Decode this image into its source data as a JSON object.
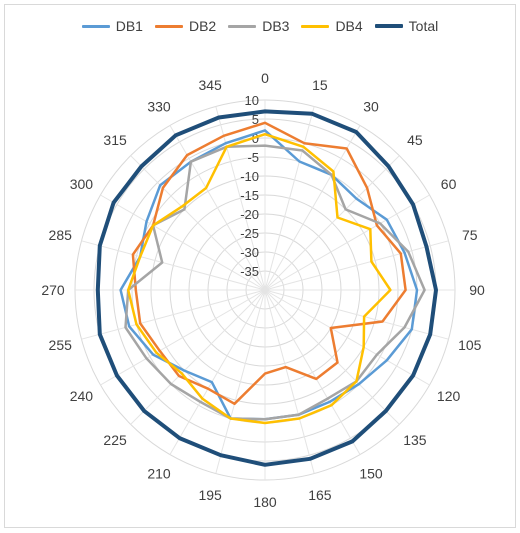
{
  "chart_data": {
    "type": "radar",
    "categories": [
      "0",
      "15",
      "30",
      "45",
      "60",
      "75",
      "90",
      "105",
      "120",
      "135",
      "150",
      "165",
      "180",
      "195",
      "210",
      "225",
      "240",
      "255",
      "270",
      "285",
      "300",
      "315",
      "330",
      "345"
    ],
    "radial_ticks": [
      "10",
      "5",
      "0",
      "-5",
      "-10",
      "-15",
      "-20",
      "-25",
      "-30",
      "-35"
    ],
    "rlim": [
      -40,
      10
    ],
    "grid": true,
    "legend_position": "top",
    "series": [
      {
        "name": "DB1",
        "color": "#5b9bd5",
        "values": [
          2,
          -5,
          -5,
          -6,
          -3,
          -2,
          0,
          0,
          -3,
          -5,
          -6,
          -6,
          -6,
          -5,
          -12,
          -10,
          -6,
          -3,
          -2,
          -6,
          -4,
          -1,
          -1,
          0
        ]
      },
      {
        "name": "DB2",
        "color": "#ed7d31",
        "values": [
          4,
          0,
          3,
          -2,
          -6,
          -3,
          -3,
          -8,
          -20,
          -13,
          -13,
          -19,
          -18,
          -9,
          -10,
          -8,
          -8,
          -6,
          -6,
          -4,
          -6,
          -2,
          1,
          2
        ]
      },
      {
        "name": "DB3",
        "color": "#a5a5a5",
        "values": [
          -2,
          -2,
          -5,
          -10,
          -5,
          -1,
          2,
          -2,
          -6,
          -6,
          -7,
          -6,
          -6,
          -5,
          -6,
          -5,
          -4,
          -2,
          -4,
          -12,
          -6,
          -10,
          -1,
          -1
        ]
      },
      {
        "name": "DB4",
        "color": "#ffc000",
        "values": [
          1,
          -1,
          -4,
          -13,
          -8,
          -11,
          -7,
          -13,
          -10,
          -6,
          -5,
          -5,
          -5,
          -5,
          -7,
          -9,
          -7,
          -5,
          -4,
          -6,
          -6,
          -9,
          -9,
          -1
        ]
      },
      {
        "name": "Total",
        "color": "#1f4e79",
        "values": [
          7,
          8,
          8,
          6,
          5,
          4,
          5,
          5,
          5,
          5,
          6,
          6,
          6,
          5,
          5,
          5,
          5,
          5,
          4,
          5,
          6,
          6,
          7,
          7
        ]
      }
    ]
  }
}
